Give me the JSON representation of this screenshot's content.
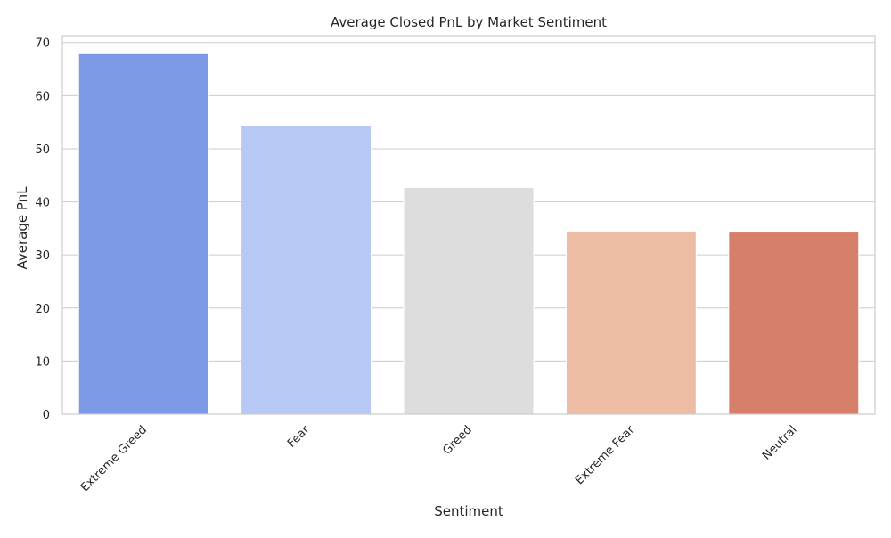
{
  "chart_data": {
    "type": "bar",
    "title": "Average Closed PnL by Market Sentiment",
    "xlabel": "Sentiment",
    "ylabel": "Average PnL",
    "categories": [
      "Extreme Greed",
      "Fear",
      "Greed",
      "Extreme Fear",
      "Neutral"
    ],
    "values": [
      67.9,
      54.3,
      42.7,
      34.5,
      34.3
    ],
    "ylim": [
      0,
      71.3
    ],
    "yticks": [
      0,
      10,
      20,
      30,
      40,
      50,
      60,
      70
    ],
    "colors": [
      "#7f9ae5",
      "#b5c9f4",
      "#dddddd",
      "#edbca5",
      "#d6806b"
    ],
    "grid": true,
    "x_tick_rotation_deg": 45
  }
}
